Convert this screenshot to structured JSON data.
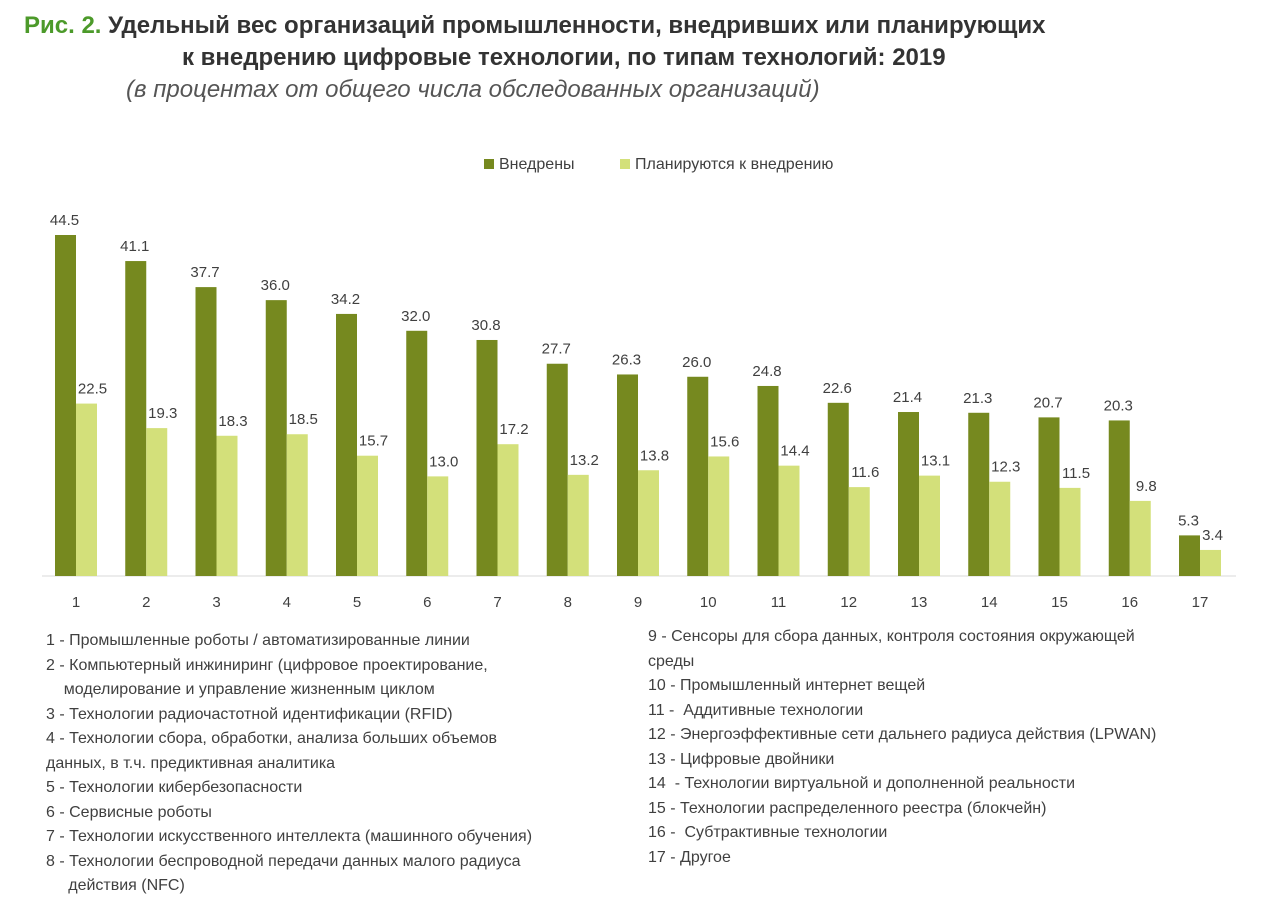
{
  "title": {
    "figure_label": "Рис. 2.",
    "line1": "Удельный вес организаций промышленности, внедривших или планирующих",
    "line2": "к внедрению цифровые технологии, по типам технологий: 2019",
    "subtitle": "(в процентах от общего числа обследованных организаций)"
  },
  "chart_data": {
    "type": "bar",
    "title": "Удельный вес организаций промышленности, внедривших или планирующих к внедрению цифровые технологии, по типам технологий: 2019",
    "subtitle": "(в процентах от общего числа обследованных организаций)",
    "categories": [
      "1",
      "2",
      "3",
      "4",
      "5",
      "6",
      "7",
      "8",
      "9",
      "10",
      "11",
      "12",
      "13",
      "14",
      "15",
      "16",
      "17"
    ],
    "series": [
      {
        "name": "Внедрены",
        "color": "#76891f",
        "values": [
          44.5,
          41.1,
          37.7,
          36.0,
          34.2,
          32.0,
          30.8,
          27.7,
          26.3,
          26.0,
          24.8,
          22.6,
          21.4,
          21.3,
          20.7,
          20.3,
          5.3
        ]
      },
      {
        "name": "Планируются к внедрению",
        "color": "#d3e07a",
        "values": [
          22.5,
          19.3,
          18.3,
          18.5,
          15.7,
          13.0,
          17.2,
          13.2,
          13.8,
          15.6,
          14.4,
          11.6,
          13.1,
          12.3,
          11.5,
          9.8,
          3.4
        ]
      }
    ],
    "data_labels": true,
    "grid": false,
    "y_axis_visible": false,
    "ylim": [
      0,
      44.5
    ],
    "legend": "top-center"
  },
  "notes": {
    "left": [
      "1 - Промышленные роботы / автоматизированные линии",
      "2 - Компьютерный инжиниринг (цифровое проектирование,",
      "    моделирование и управление жизненным циклом",
      "3 - Технологии радиочастотной идентификации (RFID)",
      "4 - Технологии сбора, обработки, анализа больших объемов",
      "данных, в т.ч. предиктивная аналитика",
      "5 - Технологии кибербезопасности",
      "6 - Сервисные роботы",
      "7 - Технологии искусственного интеллекта (машинного обучения)",
      "8 - Технологии беспроводной передачи данных малого радиуса",
      "     действия (NFC)"
    ],
    "right": [
      "9 - Сенсоры для сбора данных, контроля состояния окружающей",
      "среды",
      "10 - Промышленный интернет вещей",
      "11 -  Аддитивные технологии",
      "12 - Энергоэффективные сети дальнего радиуса действия (LPWAN)",
      "13 - Цифровые двойники",
      "14  - Технологии виртуальной и дополненной реальности",
      "15 - Технологии распределенного реестра (блокчейн)",
      "16 -  Субтрактивные технологии",
      "17 - Другое"
    ]
  }
}
